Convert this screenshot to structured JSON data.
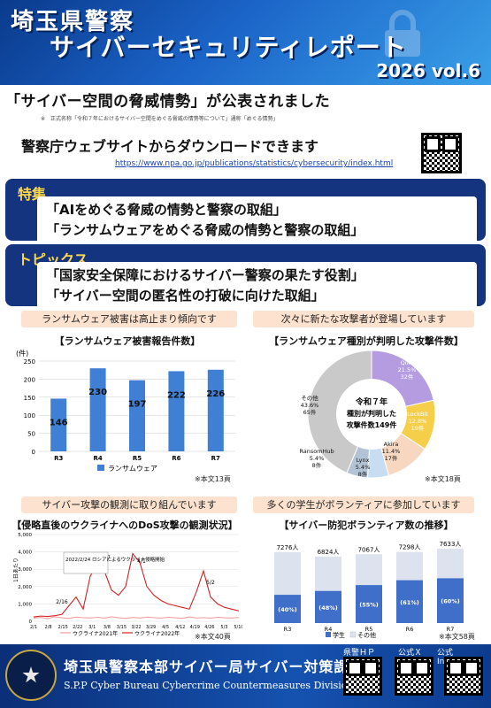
{
  "header": {
    "line1": "埼玉県警察",
    "line2": "サイバーセキュリティレポート",
    "volume": "2026 vol.6"
  },
  "announcement": {
    "headline": "「サイバー空間の脅威情勢」が公表されました",
    "note": "※　正式名称「令和７年におけるサイバー空間をめぐる脅威の情勢等について」通称「めぐる情勢」"
  },
  "download": {
    "heading": "警察庁ウェブサイトからダウンロードできます",
    "url": "https://www.npa.go.jp/publications/statistics/cybersecurity/index.html"
  },
  "feature": {
    "label": "特集",
    "items": [
      "「AIをめぐる脅威の情勢と警察の取組」",
      "「ランサムウェアをめぐる脅威の情勢と警察の取組」"
    ]
  },
  "topics": {
    "label": "トピックス",
    "items": [
      "「国家安全保障におけるサイバー警察の果たす役割」",
      "「サイバー空間の匿名性の打破に向けた取組」"
    ]
  },
  "sections": {
    "ransom_caption": "ランサムウェア被害は高止まり傾向です",
    "attackers_caption": "次々に新たな攻撃者が登場しています",
    "observe_caption": "サイバー攻撃の観測に取り組んでいます",
    "students_caption": "多くの学生がボランティアに参加しています"
  },
  "bar_chart_titles": {
    "title": "【ランサムウェア被害報告件数】",
    "unit": "(件)",
    "legend": "ランサムウェア",
    "source": "※本文13頁"
  },
  "pie_titles": {
    "title": "【ランサムウェア種別が判明した攻撃件数】",
    "center_line1": "令和７年",
    "center_line2": "種別が判明した",
    "center_line3": "攻撃件数149件",
    "source": "※本文18頁"
  },
  "line_titles": {
    "title": "【侵略直後のウクライナへのDoS攻撃の観測状況】",
    "annotation_box": "2022/2/24 ロシアによるウクライナ侵略開始",
    "legend_2021": "ウクライナ2021年",
    "legend_2022": "ウクライナ2022年",
    "source": "※本文40頁",
    "yaxis_label": "1日あたり"
  },
  "volunteer_titles": {
    "title": "【サイバー防犯ボランティア数の推移】",
    "legend_students": "学生",
    "legend_other": "その他",
    "source": "※本文58頁"
  },
  "chart_data": [
    {
      "type": "bar",
      "title": "【ランサムウェア被害報告件数】",
      "ylabel": "(件)",
      "categories": [
        "R3",
        "R4",
        "R5",
        "R6",
        "R7"
      ],
      "series": [
        {
          "name": "ランサムウェア",
          "values": [
            146,
            230,
            197,
            222,
            226
          ]
        }
      ],
      "ylim": [
        0,
        250
      ],
      "yticks": [
        0,
        50,
        100,
        150,
        200,
        250
      ],
      "color": "#3f7fd4"
    },
    {
      "type": "pie",
      "title": "【ランサムウェア種別が判明した攻撃件数】",
      "slices": [
        {
          "name": "Qilin",
          "percent": "21.5%",
          "count": "32件",
          "value": 32,
          "color": "#b59be0"
        },
        {
          "name": "LockBit",
          "percent": "12.8%",
          "count": "19件",
          "value": 19,
          "color": "#f5cf4a"
        },
        {
          "name": "Akira",
          "percent": "11.4%",
          "count": "17件",
          "value": 17,
          "color": "#f7d7bf"
        },
        {
          "name": "Lynx",
          "percent": "5.4%",
          "count": "8件",
          "value": 8,
          "color": "#c8dcf2"
        },
        {
          "name": "RansomHub",
          "percent": "5.4%",
          "count": "8件",
          "value": 8,
          "color": "#b3c3d6"
        },
        {
          "name": "その他",
          "percent": "43.6%",
          "count": "65件",
          "value": 65,
          "color": "#c9c9c9"
        }
      ]
    },
    {
      "type": "line",
      "title": "【侵略直後のウクライナへのDoS攻撃の観測状況】",
      "x_ticks": [
        "2/1",
        "2/8",
        "2/15",
        "2/22",
        "3/1",
        "3/8",
        "3/15",
        "3/22",
        "3/29",
        "4/5",
        "4/12",
        "4/19",
        "4/26",
        "5/3",
        "5/10"
      ],
      "ylim": [
        0,
        5000
      ],
      "yticks": [
        "0",
        "1,000",
        "2,000",
        "3,000",
        "4,000",
        "5,000"
      ],
      "series": [
        {
          "name": "ウクライナ2021年",
          "color": "#f3a0a0",
          "values": [
            180,
            220,
            150,
            260,
            200,
            170,
            240,
            210,
            190,
            230,
            180,
            260,
            200,
            170,
            220,
            190,
            240,
            210,
            180,
            230,
            200,
            170,
            250,
            190,
            210,
            180,
            230,
            200,
            190,
            220
          ]
        },
        {
          "name": "ウクライナ2022年",
          "color": "#d62020",
          "values": [
            250,
            300,
            280,
            320,
            400,
            900,
            1400,
            700,
            2600,
            3300,
            2900,
            1800,
            1500,
            2000,
            3900,
            3400,
            2000,
            1500,
            1200,
            1000,
            900,
            800,
            700,
            1700,
            2900,
            1400,
            1000,
            800,
            700,
            600
          ]
        }
      ],
      "annotations": [
        "2/16",
        "3/7",
        "4/1",
        "5/2"
      ]
    },
    {
      "type": "bar",
      "title": "【サイバー防犯ボランティア数の推移】",
      "categories": [
        "R3",
        "R4",
        "R5",
        "R6",
        "R7"
      ],
      "totals": [
        "7276人",
        "6824人",
        "7067人",
        "7298人",
        "7633人"
      ],
      "series": [
        {
          "name": "学生",
          "values": [
            2900,
            3300,
            3900,
            4400,
            4600
          ],
          "labels": [
            "(40%)",
            "(48%)",
            "(55%)",
            "(61%)",
            "(60%)"
          ],
          "color": "#3f6fc8"
        },
        {
          "name": "その他",
          "values": [
            4376,
            3524,
            3167,
            2898,
            3033
          ],
          "color": "#dde3ee"
        }
      ]
    }
  ],
  "footer": {
    "org": "埼玉県警察本部サイバー局サイバー対策課",
    "org_en": "S.P.P Cyber Bureau Cybercrime Countermeasures Division",
    "qr_labels": [
      "県警ＨＰ",
      "公式Ｘ",
      "公式Instagram"
    ]
  }
}
